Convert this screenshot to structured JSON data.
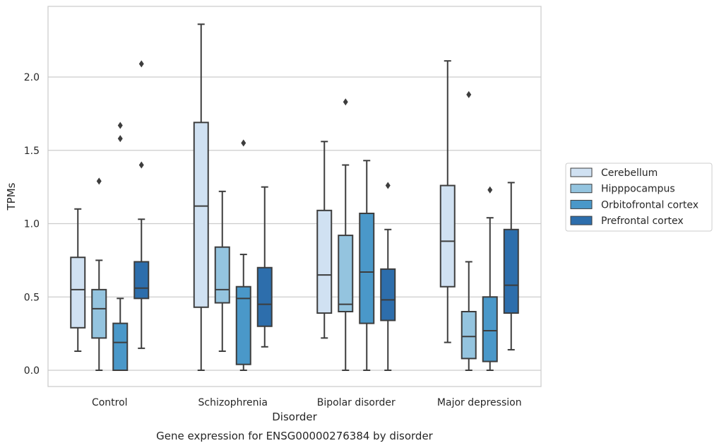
{
  "chart_data": {
    "type": "box",
    "title": "",
    "caption": "Gene expression for ENSG00000276384 by disorder",
    "xlabel": "Disorder",
    "ylabel": "TPMs",
    "ylim": [
      -0.11,
      2.48
    ],
    "yticks": [
      "0.0",
      "0.5",
      "1.0",
      "1.5",
      "2.0"
    ],
    "grid": "horizontal",
    "legend_position": "right",
    "categories": [
      "Control",
      "Schizophrenia",
      "Bipolar disorder",
      "Major depression"
    ],
    "series": [
      {
        "name": "Cerebellum",
        "color": "#d0e1f2",
        "boxes": [
          {
            "whislo": 0.13,
            "q1": 0.29,
            "med": 0.55,
            "q3": 0.77,
            "whishi": 1.1,
            "fliers": []
          },
          {
            "whislo": 0.0,
            "q1": 0.43,
            "med": 1.12,
            "q3": 1.69,
            "whishi": 2.36,
            "fliers": []
          },
          {
            "whislo": 0.22,
            "q1": 0.39,
            "med": 0.65,
            "q3": 1.09,
            "whishi": 1.56,
            "fliers": []
          },
          {
            "whislo": 0.19,
            "q1": 0.57,
            "med": 0.88,
            "q3": 1.26,
            "whishi": 2.11,
            "fliers": []
          }
        ]
      },
      {
        "name": "Hipppocampus",
        "color": "#94c4df",
        "boxes": [
          {
            "whislo": 0.0,
            "q1": 0.22,
            "med": 0.42,
            "q3": 0.55,
            "whishi": 0.75,
            "fliers": [
              1.29
            ]
          },
          {
            "whislo": 0.13,
            "q1": 0.46,
            "med": 0.55,
            "q3": 0.84,
            "whishi": 1.22,
            "fliers": []
          },
          {
            "whislo": 0.0,
            "q1": 0.4,
            "med": 0.45,
            "q3": 0.92,
            "whishi": 1.4,
            "fliers": [
              1.83
            ]
          },
          {
            "whislo": 0.0,
            "q1": 0.08,
            "med": 0.23,
            "q3": 0.4,
            "whishi": 0.74,
            "fliers": [
              1.88
            ]
          }
        ]
      },
      {
        "name": "Orbitofrontal cortex",
        "color": "#4a98c9",
        "boxes": [
          {
            "whislo": 0.0,
            "q1": 0.0,
            "med": 0.19,
            "q3": 0.32,
            "whishi": 0.49,
            "fliers": [
              1.58,
              1.67
            ]
          },
          {
            "whislo": 0.0,
            "q1": 0.04,
            "med": 0.49,
            "q3": 0.57,
            "whishi": 0.79,
            "fliers": [
              1.55
            ]
          },
          {
            "whislo": 0.0,
            "q1": 0.32,
            "med": 0.67,
            "q3": 1.07,
            "whishi": 1.43,
            "fliers": []
          },
          {
            "whislo": 0.0,
            "q1": 0.06,
            "med": 0.27,
            "q3": 0.5,
            "whishi": 1.04,
            "fliers": [
              1.23
            ]
          }
        ]
      },
      {
        "name": "Prefrontal cortex",
        "color": "#2d6eac",
        "boxes": [
          {
            "whislo": 0.15,
            "q1": 0.49,
            "med": 0.56,
            "q3": 0.74,
            "whishi": 1.03,
            "fliers": [
              1.4,
              2.09
            ]
          },
          {
            "whislo": 0.16,
            "q1": 0.3,
            "med": 0.45,
            "q3": 0.7,
            "whishi": 1.25,
            "fliers": []
          },
          {
            "whislo": 0.0,
            "q1": 0.34,
            "med": 0.48,
            "q3": 0.69,
            "whishi": 0.96,
            "fliers": [
              1.26
            ]
          },
          {
            "whislo": 0.14,
            "q1": 0.39,
            "med": 0.58,
            "q3": 0.96,
            "whishi": 1.28,
            "fliers": []
          }
        ]
      }
    ]
  }
}
